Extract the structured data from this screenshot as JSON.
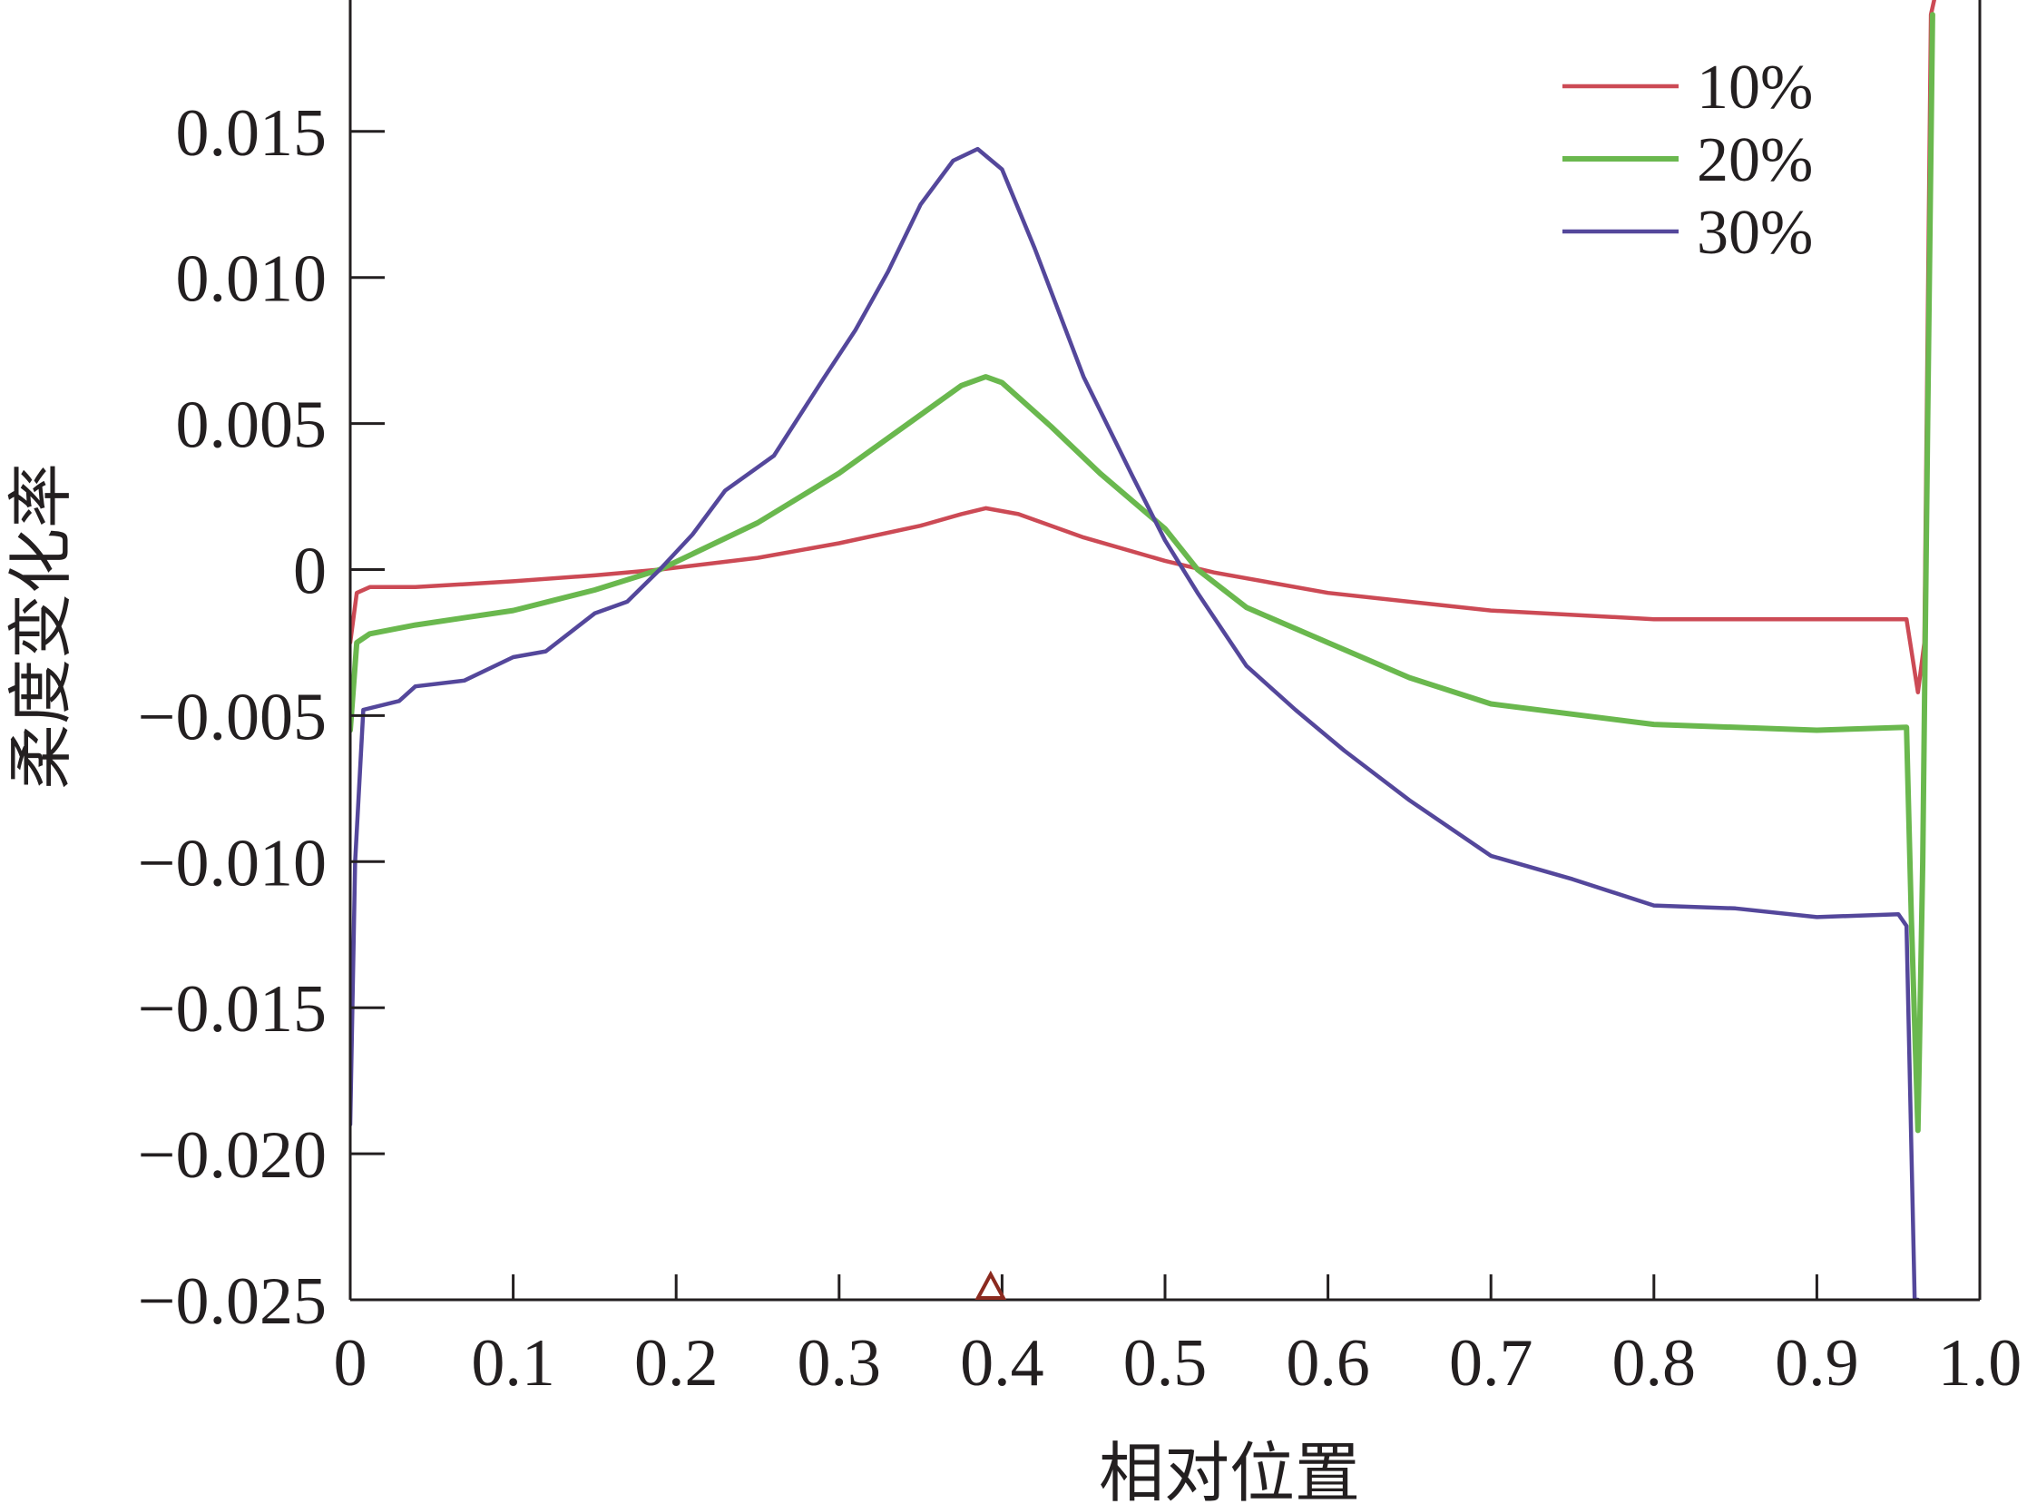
{
  "chart_data": {
    "type": "line",
    "xlabel": "相对位置",
    "ylabel": "柔度变化率",
    "xlim": [
      0,
      1.0
    ],
    "ylim": [
      -0.025,
      0.0195
    ],
    "x_ticks": [
      0,
      0.1,
      0.2,
      0.3,
      0.4,
      0.5,
      0.6,
      0.7,
      0.8,
      0.9,
      1.0
    ],
    "x_tick_labels": [
      "0",
      "0.1",
      "0.2",
      "0.3",
      "0.4",
      "0.5",
      "0.6",
      "0.7",
      "0.8",
      "0.9",
      "1.0"
    ],
    "y_ticks": [
      0.015,
      0.01,
      0.005,
      0,
      -0.005,
      -0.01,
      -0.015,
      -0.02,
      -0.025
    ],
    "y_tick_labels": [
      "0.015",
      "0.010",
      "0.005",
      "0",
      "−0.005",
      "−0.010",
      "−0.015",
      "−0.020",
      "−0.025"
    ],
    "grid": false,
    "legend_position": "top-right",
    "marker": {
      "symbol": "triangle",
      "x": 0.393,
      "color": "#8b2a1f"
    },
    "series": [
      {
        "name": "10%",
        "color": "#cc4a55",
        "points": [
          [
            0,
            -0.0025
          ],
          [
            0.004,
            -0.0008
          ],
          [
            0.012,
            -0.0006
          ],
          [
            0.04,
            -0.0006
          ],
          [
            0.1,
            -0.0004
          ],
          [
            0.15,
            -0.0002
          ],
          [
            0.19,
            0.0
          ],
          [
            0.25,
            0.0004
          ],
          [
            0.3,
            0.0009
          ],
          [
            0.35,
            0.0015
          ],
          [
            0.375,
            0.0019
          ],
          [
            0.39,
            0.0021
          ],
          [
            0.41,
            0.0019
          ],
          [
            0.45,
            0.0011
          ],
          [
            0.5,
            0.0003
          ],
          [
            0.53,
            -0.0001
          ],
          [
            0.6,
            -0.0008
          ],
          [
            0.7,
            -0.0014
          ],
          [
            0.8,
            -0.0017
          ],
          [
            0.9,
            -0.0017
          ],
          [
            0.955,
            -0.0017
          ],
          [
            0.962,
            -0.0042
          ],
          [
            0.966,
            -0.0025
          ],
          [
            0.97,
            0.019
          ],
          [
            0.972,
            0.0195
          ]
        ]
      },
      {
        "name": "20%",
        "color": "#6ab84e",
        "points": [
          [
            0,
            -0.0055
          ],
          [
            0.004,
            -0.0025
          ],
          [
            0.012,
            -0.0022
          ],
          [
            0.04,
            -0.0019
          ],
          [
            0.1,
            -0.0014
          ],
          [
            0.15,
            -0.0007
          ],
          [
            0.19,
            0.0
          ],
          [
            0.25,
            0.0016
          ],
          [
            0.3,
            0.0033
          ],
          [
            0.35,
            0.0053
          ],
          [
            0.375,
            0.0063
          ],
          [
            0.39,
            0.0066
          ],
          [
            0.4,
            0.0064
          ],
          [
            0.43,
            0.0049
          ],
          [
            0.46,
            0.0033
          ],
          [
            0.5,
            0.0014
          ],
          [
            0.52,
            0.0
          ],
          [
            0.55,
            -0.0013
          ],
          [
            0.6,
            -0.0025
          ],
          [
            0.65,
            -0.0037
          ],
          [
            0.7,
            -0.0046
          ],
          [
            0.8,
            -0.0053
          ],
          [
            0.9,
            -0.0055
          ],
          [
            0.955,
            -0.0054
          ],
          [
            0.958,
            -0.012
          ],
          [
            0.962,
            -0.0192
          ],
          [
            0.965,
            -0.01
          ],
          [
            0.968,
            0.005
          ],
          [
            0.971,
            0.019
          ]
        ]
      },
      {
        "name": "30%",
        "color": "#54479b",
        "points": [
          [
            0,
            -0.019
          ],
          [
            0.003,
            -0.01
          ],
          [
            0.008,
            -0.0048
          ],
          [
            0.03,
            -0.0045
          ],
          [
            0.04,
            -0.004
          ],
          [
            0.07,
            -0.0038
          ],
          [
            0.1,
            -0.003
          ],
          [
            0.12,
            -0.0028
          ],
          [
            0.15,
            -0.0015
          ],
          [
            0.17,
            -0.0011
          ],
          [
            0.19,
            0.0
          ],
          [
            0.21,
            0.0012
          ],
          [
            0.23,
            0.0027
          ],
          [
            0.26,
            0.0039
          ],
          [
            0.29,
            0.0065
          ],
          [
            0.31,
            0.0082
          ],
          [
            0.33,
            0.0102
          ],
          [
            0.35,
            0.0125
          ],
          [
            0.37,
            0.014
          ],
          [
            0.385,
            0.0144
          ],
          [
            0.4,
            0.0137
          ],
          [
            0.42,
            0.011
          ],
          [
            0.45,
            0.0066
          ],
          [
            0.48,
            0.0032
          ],
          [
            0.5,
            0.001
          ],
          [
            0.52,
            -0.0008
          ],
          [
            0.55,
            -0.0033
          ],
          [
            0.58,
            -0.0048
          ],
          [
            0.61,
            -0.0062
          ],
          [
            0.65,
            -0.0079
          ],
          [
            0.7,
            -0.0098
          ],
          [
            0.75,
            -0.0106
          ],
          [
            0.8,
            -0.0115
          ],
          [
            0.85,
            -0.0116
          ],
          [
            0.9,
            -0.0119
          ],
          [
            0.95,
            -0.0118
          ],
          [
            0.955,
            -0.0122
          ],
          [
            0.96,
            -0.025
          ],
          [
            0.962,
            -0.025
          ]
        ]
      }
    ]
  }
}
